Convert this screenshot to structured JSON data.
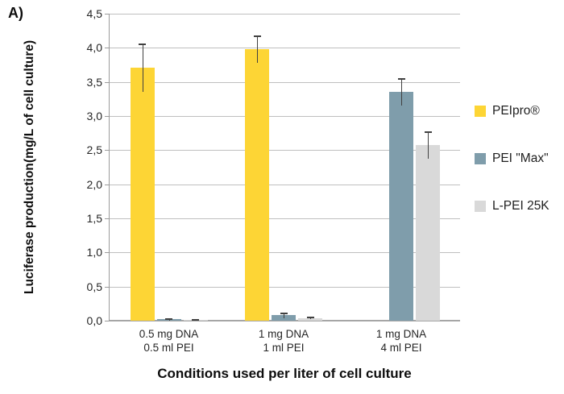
{
  "figure_label": "A)",
  "colors": {
    "peipro": "#FDD535",
    "pei_max": "#7F9DAB",
    "lpei": "#D9D9D9",
    "gridline": "#BFBFBF",
    "axis": "#9B9B9B",
    "baseline": "#A6A6A6",
    "error_bar": "#404040",
    "text": "#262626"
  },
  "chart_data": {
    "type": "bar",
    "title": "",
    "xlabel": "Conditions used per liter of cell culture",
    "ylabel_line1": "Luciferase production",
    "ylabel_line2": "(mg/L of cell culture)",
    "ylim": [
      0,
      4.5
    ],
    "ytick_step": 0.5,
    "ytick_labels": [
      "0,0",
      "0,5",
      "1,0",
      "1,5",
      "2,0",
      "2,5",
      "3,0",
      "3,5",
      "4,0",
      "4,5"
    ],
    "grid": true,
    "legend_position": "right",
    "categories": [
      {
        "line1": "0.5 mg DNA",
        "line2": "0.5 ml PEI"
      },
      {
        "line1": "1 mg DNA",
        "line2": "1 ml PEI"
      },
      {
        "line1": "1 mg DNA",
        "line2": "4 ml PEI"
      }
    ],
    "series": [
      {
        "name": "PEIpro®",
        "color_key": "peipro",
        "values": [
          3.71,
          3.98,
          null
        ],
        "errors": [
          0.35,
          0.2,
          null
        ]
      },
      {
        "name": "PEI \"Max\"",
        "color_key": "pei_max",
        "values": [
          0.02,
          0.08,
          3.35
        ],
        "errors": [
          0.02,
          0.04,
          0.2
        ]
      },
      {
        "name": "L-PEI 25K",
        "color_key": "lpei",
        "values": [
          0.01,
          0.04,
          2.57
        ],
        "errors": [
          0.01,
          0.02,
          0.2
        ]
      }
    ]
  }
}
